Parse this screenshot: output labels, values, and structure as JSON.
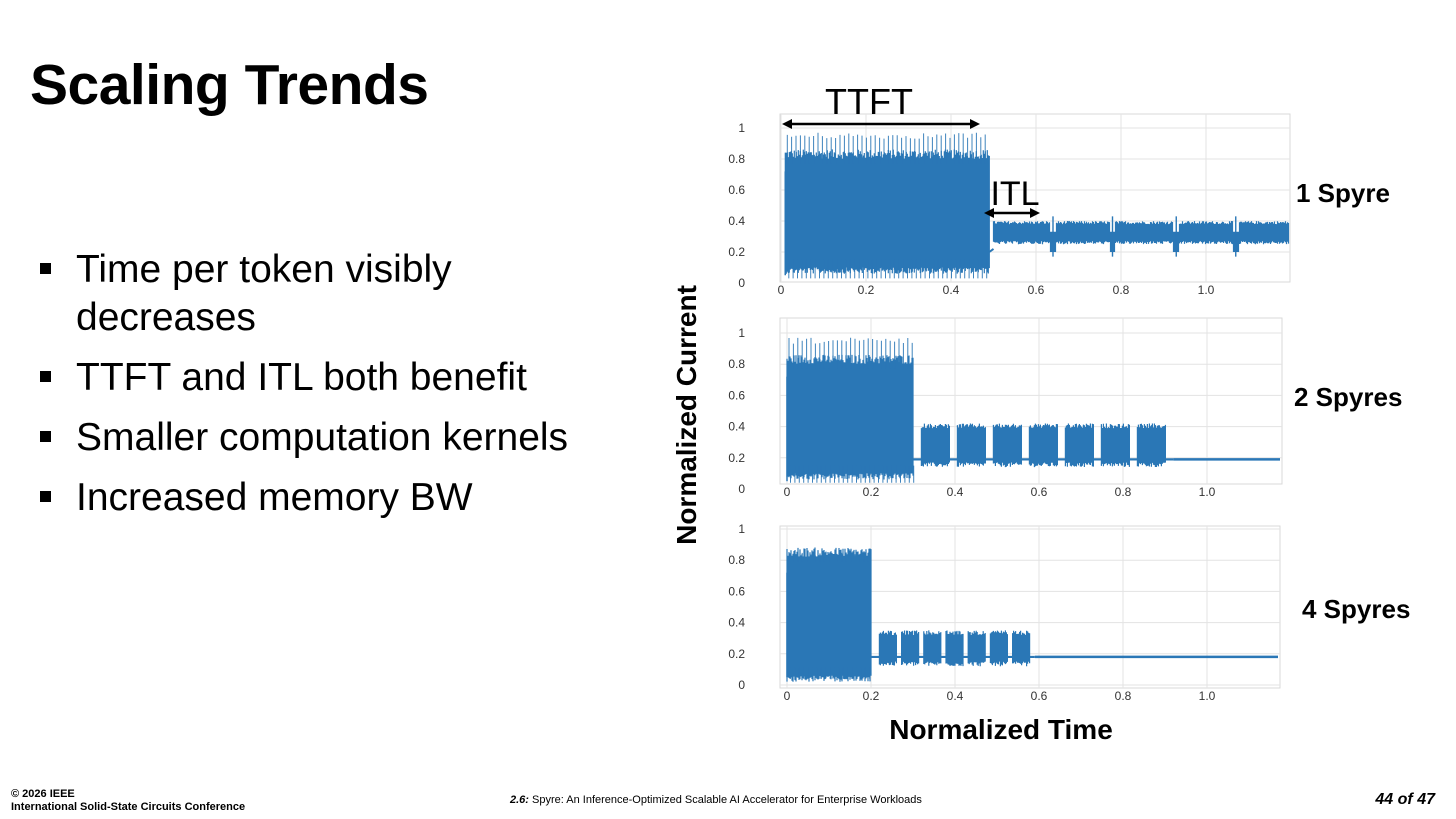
{
  "slide": {
    "title": "Scaling Trends"
  },
  "bullets": [
    "Time per token visibly decreases",
    "TTFT and ITL both benefit",
    "Smaller computation kernels",
    "Increased memory BW"
  ],
  "annotations": {
    "ttft": "TTFT",
    "itl": "ITL"
  },
  "chart_data": {
    "type": "line",
    "xlabel": "Normalized Time",
    "ylabel": "Normalized Current",
    "x_ticks": [
      "0",
      "0.2",
      "0.4",
      "0.6",
      "0.8",
      "1.0"
    ],
    "y_ticks": [
      "0",
      "0.2",
      "0.4",
      "0.6",
      "0.8",
      "1"
    ],
    "xlim": [
      -0.02,
      1.2
    ],
    "ylim": [
      0,
      1.05
    ],
    "grid": true,
    "line_color": "#2a77b6",
    "panels": [
      {
        "label": "1 Spyre",
        "ttft_phase": {
          "x_start": 0.01,
          "x_end": 0.49,
          "low": 0.03,
          "high": 0.97,
          "dense_band": [
            0.1,
            0.82
          ]
        },
        "itl_phase": {
          "x_start": 0.5,
          "x_end": 1.2,
          "level": 0.33,
          "band": [
            0.27,
            0.38
          ],
          "gap_dip": 0.2,
          "gaps": [
            0.64,
            0.78,
            0.93,
            1.07
          ]
        }
      },
      {
        "label": "2 Spyres",
        "ttft_phase": {
          "x_start": 0.0,
          "x_end": 0.3,
          "low": 0.04,
          "high": 0.97,
          "dense_band": [
            0.1,
            0.82
          ]
        },
        "itl_phase": {
          "x_start": 0.32,
          "x_end": 0.92,
          "level": 0.25,
          "band": [
            0.14,
            0.42
          ],
          "gap_level": 0.19,
          "bursts": 7
        },
        "idle_level": 0.19
      },
      {
        "label": "4 Spyres",
        "ttft_phase": {
          "x_start": 0.0,
          "x_end": 0.2,
          "low": 0.04,
          "high": 0.85,
          "dense_band": [
            0.06,
            0.84
          ]
        },
        "itl_phase": {
          "x_start": 0.22,
          "x_end": 0.59,
          "level": 0.2,
          "band": [
            0.12,
            0.35
          ],
          "gap_level": 0.18,
          "bursts": 7
        },
        "idle_level": 0.18
      }
    ]
  },
  "footer": {
    "copyright_line1": "© 2026 IEEE",
    "copyright_line2": "International Solid-State Circuits Conference",
    "session": "2.6:",
    "paper_title": "Spyre: An Inference-Optimized Scalable AI Accelerator for Enterprise Workloads",
    "page": "44 of 47"
  }
}
